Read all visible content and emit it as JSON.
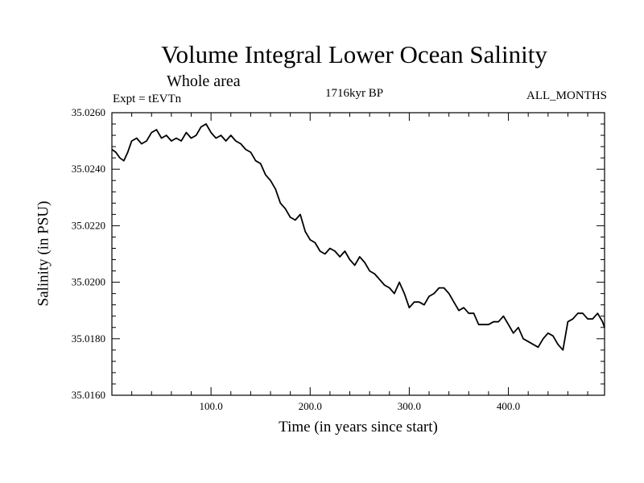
{
  "header": {
    "title": "Volume Integral Lower Ocean Salinity",
    "subtitle": "Whole area",
    "experiment": "Expt = tEVTn",
    "period": "1716kyr BP",
    "months": "ALL_MONTHS"
  },
  "chart_data": {
    "type": "line",
    "title": "Volume Integral Lower Ocean Salinity",
    "xlabel": "Time (in years since start)",
    "ylabel": "Salinity (in PSU)",
    "xlim": [
      0,
      497
    ],
    "ylim": [
      35.016,
      35.026
    ],
    "x_ticks": [
      100,
      200,
      300,
      400
    ],
    "x_tick_labels": [
      "100.0",
      "200.0",
      "300.0",
      "400.0"
    ],
    "y_ticks": [
      35.016,
      35.018,
      35.02,
      35.022,
      35.024,
      35.026
    ],
    "y_tick_labels": [
      "35.0160",
      "35.0180",
      "35.0200",
      "35.0220",
      "35.0240",
      "35.0260"
    ],
    "grid": false,
    "series": [
      {
        "name": "Salinity",
        "color": "#000000",
        "x": [
          0,
          4,
          8,
          12,
          16,
          20,
          25,
          30,
          35,
          40,
          45,
          50,
          55,
          60,
          65,
          70,
          75,
          80,
          85,
          90,
          95,
          100,
          105,
          110,
          115,
          120,
          125,
          130,
          135,
          140,
          145,
          150,
          155,
          160,
          165,
          170,
          175,
          180,
          185,
          190,
          195,
          200,
          205,
          210,
          215,
          220,
          225,
          230,
          235,
          240,
          245,
          250,
          255,
          260,
          265,
          270,
          275,
          280,
          285,
          290,
          295,
          300,
          305,
          310,
          315,
          320,
          325,
          330,
          335,
          340,
          345,
          350,
          355,
          360,
          365,
          370,
          375,
          380,
          385,
          390,
          395,
          400,
          405,
          410,
          415,
          420,
          425,
          430,
          435,
          440,
          445,
          450,
          455,
          460,
          465,
          470,
          475,
          480,
          485,
          490,
          495,
          497
        ],
        "values": [
          35.0247,
          35.0246,
          35.0244,
          35.0243,
          35.0246,
          35.025,
          35.0251,
          35.0249,
          35.025,
          35.0253,
          35.0254,
          35.0251,
          35.0252,
          35.025,
          35.0251,
          35.025,
          35.0253,
          35.0251,
          35.0252,
          35.0255,
          35.0256,
          35.0253,
          35.0251,
          35.0252,
          35.025,
          35.0252,
          35.025,
          35.0249,
          35.0247,
          35.0246,
          35.0243,
          35.0242,
          35.0238,
          35.0236,
          35.0233,
          35.0228,
          35.0226,
          35.0223,
          35.0222,
          35.0224,
          35.0218,
          35.0215,
          35.0214,
          35.0211,
          35.021,
          35.0212,
          35.0211,
          35.0209,
          35.0211,
          35.0208,
          35.0206,
          35.0209,
          35.0207,
          35.0204,
          35.0203,
          35.0201,
          35.0199,
          35.0198,
          35.0196,
          35.02,
          35.0196,
          35.0191,
          35.0193,
          35.0193,
          35.0192,
          35.0195,
          35.0196,
          35.0198,
          35.0198,
          35.0196,
          35.0193,
          35.019,
          35.0191,
          35.0189,
          35.0189,
          35.0185,
          35.0185,
          35.0185,
          35.0186,
          35.0186,
          35.0188,
          35.0185,
          35.0182,
          35.0184,
          35.018,
          35.0179,
          35.0178,
          35.0177,
          35.018,
          35.0182,
          35.0181,
          35.0178,
          35.0176,
          35.0186,
          35.0187,
          35.0189,
          35.0189,
          35.0187,
          35.0187,
          35.0189,
          35.0186,
          35.0184
        ]
      }
    ]
  }
}
